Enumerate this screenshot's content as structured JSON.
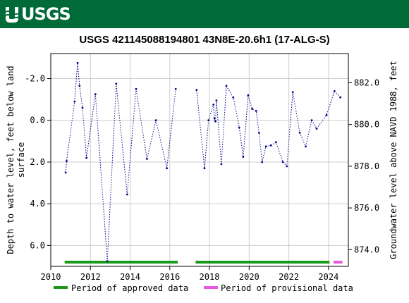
{
  "header": {
    "logo_text": "USGS"
  },
  "chart_data": {
    "type": "scatter",
    "title": "USGS 421145088194801 43N8E-20.6h1 (17-ALG-S)",
    "ylabel": "Depth to water level, feet below land surface",
    "ylabel_lines": [
      "Depth to water level, feet below land",
      "surface"
    ],
    "y2label": "Groundwater level above NAVD 1988, feet",
    "xlim": [
      2010,
      2025
    ],
    "ylim": [
      7.0,
      -3.2
    ],
    "y2lim": [
      873.2,
      883.4
    ],
    "x_ticks": [
      2010,
      2012,
      2014,
      2016,
      2018,
      2020,
      2022,
      2024
    ],
    "y_ticks": [
      -2.0,
      0.0,
      2.0,
      4.0,
      6.0
    ],
    "y_tick_labels": [
      "-2.0",
      "0.0",
      "2.0",
      "4.0",
      "6.0"
    ],
    "y2_ticks": [
      882.0,
      880.0,
      878.0,
      876.0,
      874.0
    ],
    "y2_tick_labels": [
      "882.0",
      "880.0",
      "878.0",
      "876.0",
      "874.0"
    ],
    "grid": true,
    "series": [
      {
        "style": "dotted-line-with-points",
        "color": "#00008b",
        "segments": [
          [
            [
              2010.75,
              2.5
            ],
            [
              2010.8,
              1.95
            ],
            [
              2011.2,
              -0.9
            ],
            [
              2011.35,
              -2.75
            ],
            [
              2011.45,
              -1.65
            ],
            [
              2011.6,
              -0.6
            ],
            [
              2011.8,
              1.8
            ],
            [
              2012.25,
              -1.25
            ],
            [
              2012.85,
              6.75
            ],
            [
              2013.3,
              -1.75
            ],
            [
              2013.85,
              3.55
            ],
            [
              2014.3,
              -1.5
            ],
            [
              2014.85,
              1.85
            ],
            [
              2015.3,
              0.0
            ],
            [
              2015.85,
              2.3
            ],
            [
              2016.3,
              -1.5
            ]
          ],
          [
            [
              2017.35,
              -1.45
            ],
            [
              2017.75,
              2.3
            ],
            [
              2017.95,
              0.0
            ],
            [
              2018.2,
              -0.75
            ],
            [
              2018.25,
              -0.1
            ],
            [
              2018.3,
              0.05
            ],
            [
              2018.35,
              -0.95
            ],
            [
              2018.6,
              2.1
            ],
            [
              2018.85,
              -1.65
            ],
            [
              2019.2,
              -1.1
            ],
            [
              2019.5,
              0.35
            ],
            [
              2019.7,
              1.75
            ],
            [
              2019.95,
              -1.2
            ],
            [
              2020.15,
              -0.55
            ],
            [
              2020.35,
              -0.45
            ],
            [
              2020.5,
              0.6
            ],
            [
              2020.65,
              2.0
            ],
            [
              2020.85,
              1.25
            ],
            [
              2021.1,
              1.2
            ],
            [
              2021.35,
              1.05
            ],
            [
              2021.7,
              2.0
            ],
            [
              2021.9,
              2.2
            ],
            [
              2022.2,
              -1.35
            ],
            [
              2022.55,
              0.6
            ],
            [
              2022.85,
              1.25
            ],
            [
              2023.15,
              0.0
            ],
            [
              2023.4,
              0.4
            ],
            [
              2023.9,
              -0.25
            ],
            [
              2024.3,
              -1.4
            ],
            [
              2024.6,
              -1.1
            ]
          ]
        ]
      }
    ],
    "approval_bars": [
      {
        "status": "approved",
        "from": 2010.7,
        "to": 2016.4,
        "color": "#1a9a1a"
      },
      {
        "status": "approved",
        "from": 2017.3,
        "to": 2024.05,
        "color": "#1a9a1a"
      },
      {
        "status": "provisional",
        "from": 2024.25,
        "to": 2024.7,
        "color": "#e75ae0"
      }
    ],
    "legend": {
      "position": "bottom",
      "items": [
        {
          "label": "Period of approved data",
          "color": "#1a9a1a"
        },
        {
          "label": "Period of provisional data",
          "color": "#e75ae0"
        }
      ]
    }
  }
}
